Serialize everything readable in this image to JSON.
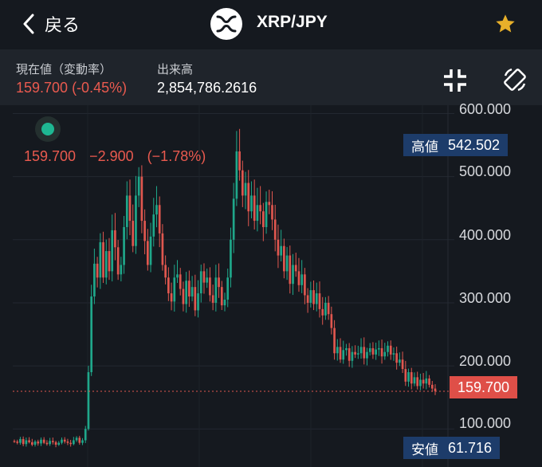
{
  "header": {
    "back_label": "戻る",
    "pair": "XRP/JPY",
    "coin_icon": "xrp-logo-icon",
    "favorite_icon": "star-icon",
    "favorite_color": "#e8b02a"
  },
  "stats": {
    "price_label": "現在値（変動率）",
    "price_value": "159.700 (-0.45%)",
    "volume_label": "出来高",
    "volume_value": "2,854,786.2616",
    "tools": [
      "fullscreen-collapse-icon",
      "rotate-screen-icon"
    ]
  },
  "legend": {
    "close": "159.700",
    "change": "−2.900",
    "change_pct": "(−1.78%)"
  },
  "axis": {
    "ticks": [
      "600.000",
      "500.000",
      "400.000",
      "300.000",
      "200.000",
      "100.000"
    ]
  },
  "tags": {
    "high_label": "高値",
    "high_value": "542.502",
    "low_label": "安値",
    "low_value": "61.716",
    "current_value": "159.700"
  },
  "colors": {
    "up": "#1fa78a",
    "down": "#e0574f",
    "background": "#15191f",
    "tag_blue": "#1d3c6a",
    "tag_red": "#df4f48"
  },
  "chart_data": {
    "type": "candlestick",
    "ylim": [
      50,
      620
    ],
    "yticks": [
      600,
      500,
      400,
      300,
      200,
      100
    ],
    "last_price": 159.7,
    "high": 542.502,
    "low": 61.716,
    "closes": [
      80,
      78,
      84,
      76,
      82,
      79,
      75,
      80,
      77,
      83,
      78,
      76,
      81,
      79,
      75,
      78,
      83,
      80,
      78,
      76,
      82,
      86,
      78,
      82,
      100,
      190,
      310,
      362,
      340,
      396,
      340,
      382,
      350,
      415,
      388,
      345,
      360,
      420,
      470,
      430,
      390,
      470,
      500,
      430,
      398,
      360,
      405,
      440,
      455,
      410,
      360,
      340,
      315,
      302,
      340,
      345,
      322,
      298,
      335,
      310,
      325,
      288,
      315,
      350,
      332,
      340,
      312,
      300,
      340,
      325,
      296,
      305,
      340,
      400,
      465,
      540,
      510,
      470,
      490,
      445,
      470,
      430,
      455,
      445,
      420,
      460,
      455,
      432,
      400,
      375,
      390,
      350,
      375,
      330,
      360,
      350,
      328,
      345,
      312,
      300,
      320,
      298,
      315,
      290,
      280,
      300,
      282,
      260,
      220,
      230,
      210,
      225,
      228,
      208,
      222,
      218,
      220,
      230,
      212,
      222,
      228,
      218,
      226,
      228,
      215,
      222,
      232,
      218,
      220,
      205,
      210,
      195,
      175,
      190,
      172,
      182,
      168,
      178,
      172,
      180,
      170,
      164,
      160
    ]
  }
}
